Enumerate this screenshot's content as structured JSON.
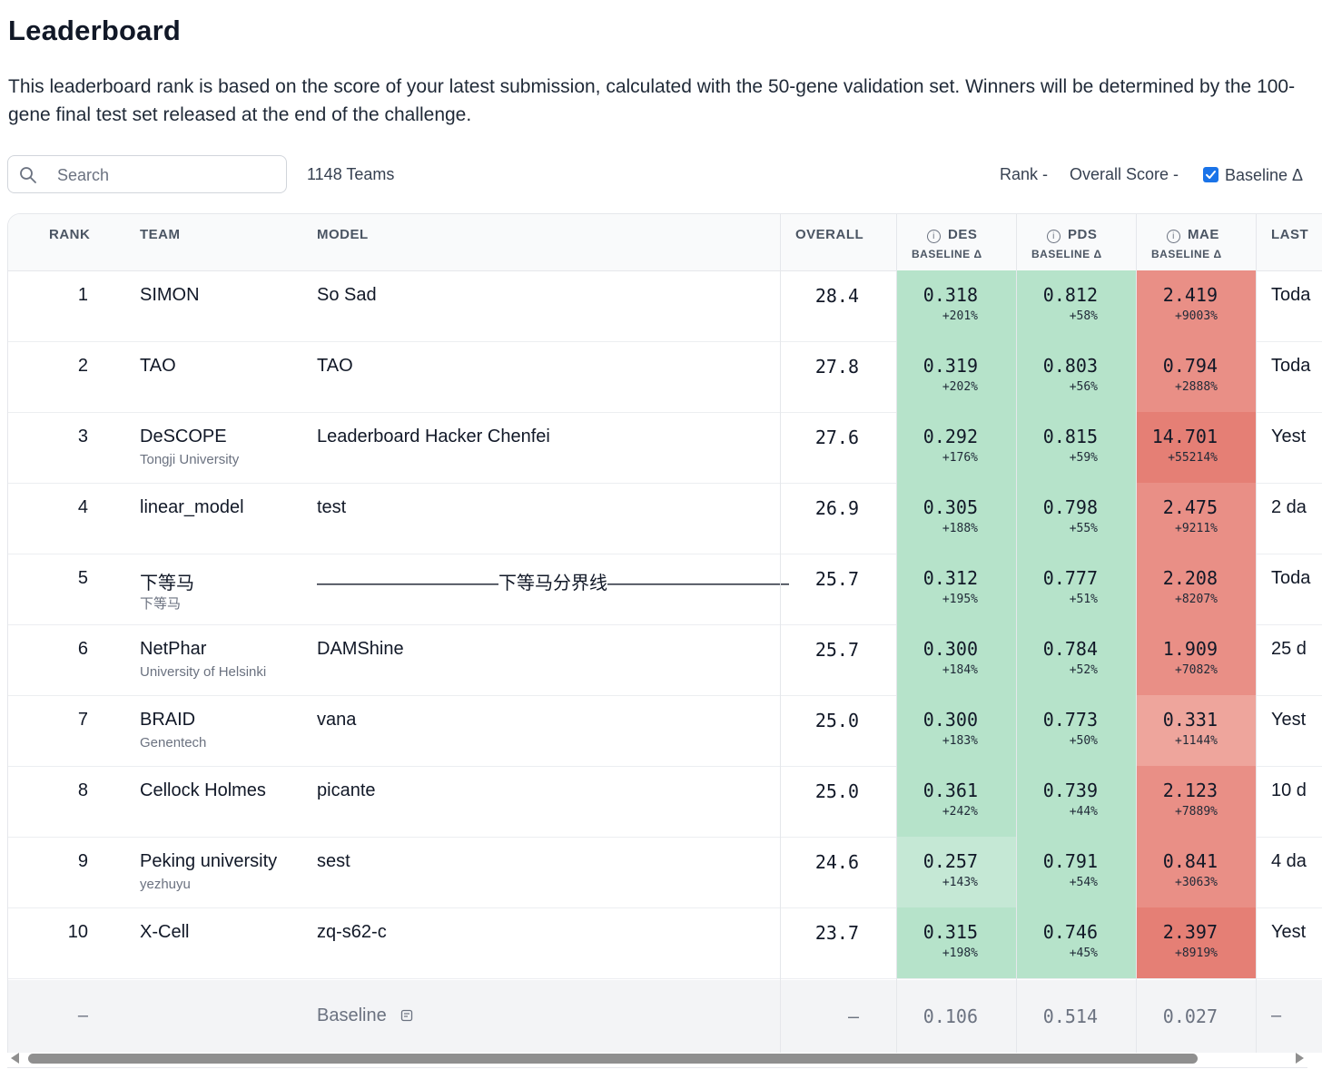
{
  "page": {
    "title": "Leaderboard",
    "description": "This leaderboard rank is based on the score of your latest submission, calculated with the 50-gene validation set. Winners will be determined by the 100-gene final test set released at the end of the challenge."
  },
  "controls": {
    "search_placeholder": "Search",
    "teams_count": "1148 Teams",
    "sort_rank": "Rank -",
    "sort_overall": "Overall Score -",
    "baseline_toggle": "Baseline Δ",
    "baseline_checked": true
  },
  "columns": {
    "rank": "RANK",
    "team": "TEAM",
    "model": "MODEL",
    "overall": "OVERALL",
    "des": "DES",
    "pds": "PDS",
    "mae": "MAE",
    "baseline_delta": "BASELINE Δ",
    "last": "LAST"
  },
  "colors": {
    "green": "#b6e3ca",
    "green_light": "#c5e8d5",
    "red": "#e98f86",
    "red_light": "#eea59c",
    "red_strong": "#e57f75"
  },
  "rows": [
    {
      "rank": "1",
      "team": "SIMON",
      "affiliation": "",
      "model": "So Sad",
      "overall": "28.4",
      "des": "0.318",
      "des_delta": "+201%",
      "pds": "0.812",
      "pds_delta": "+58%",
      "mae": "2.419",
      "mae_delta": "+9003%",
      "last": "Toda"
    },
    {
      "rank": "2",
      "team": "TAO",
      "affiliation": "",
      "model": "TAO",
      "overall": "27.8",
      "des": "0.319",
      "des_delta": "+202%",
      "pds": "0.803",
      "pds_delta": "+56%",
      "mae": "0.794",
      "mae_delta": "+2888%",
      "last": "Toda"
    },
    {
      "rank": "3",
      "team": "DeSCOPE",
      "affiliation": "Tongji University",
      "model": "Leaderboard Hacker Chenfei",
      "overall": "27.6",
      "des": "0.292",
      "des_delta": "+176%",
      "pds": "0.815",
      "pds_delta": "+59%",
      "mae": "14.701",
      "mae_delta": "+55214%",
      "last": "Yest"
    },
    {
      "rank": "4",
      "team": "linear_model",
      "affiliation": "",
      "model": "test",
      "overall": "26.9",
      "des": "0.305",
      "des_delta": "+188%",
      "pds": "0.798",
      "pds_delta": "+55%",
      "mae": "2.475",
      "mae_delta": "+9211%",
      "last": "2 da"
    },
    {
      "rank": "5",
      "team": "下等马",
      "affiliation": "下等马",
      "model": "——————————下等马分界线——————————",
      "overall": "25.7",
      "des": "0.312",
      "des_delta": "+195%",
      "pds": "0.777",
      "pds_delta": "+51%",
      "mae": "2.208",
      "mae_delta": "+8207%",
      "last": "Toda"
    },
    {
      "rank": "6",
      "team": "NetPhar",
      "affiliation": "University of Helsinki",
      "model": "DAMShine",
      "overall": "25.7",
      "des": "0.300",
      "des_delta": "+184%",
      "pds": "0.784",
      "pds_delta": "+52%",
      "mae": "1.909",
      "mae_delta": "+7082%",
      "last": "25 d"
    },
    {
      "rank": "7",
      "team": "BRAID",
      "affiliation": "Genentech",
      "model": "vana",
      "overall": "25.0",
      "des": "0.300",
      "des_delta": "+183%",
      "pds": "0.773",
      "pds_delta": "+50%",
      "mae": "0.331",
      "mae_delta": "+1144%",
      "last": "Yest"
    },
    {
      "rank": "8",
      "team": "Cellock Holmes",
      "affiliation": "",
      "model": "picante",
      "overall": "25.0",
      "des": "0.361",
      "des_delta": "+242%",
      "pds": "0.739",
      "pds_delta": "+44%",
      "mae": "2.123",
      "mae_delta": "+7889%",
      "last": "10 d"
    },
    {
      "rank": "9",
      "team": "Peking university",
      "affiliation": "yezhuyu",
      "model": "sest",
      "overall": "24.6",
      "des": "0.257",
      "des_delta": "+143%",
      "pds": "0.791",
      "pds_delta": "+54%",
      "mae": "0.841",
      "mae_delta": "+3063%",
      "last": "4 da"
    },
    {
      "rank": "10",
      "team": "X-Cell",
      "affiliation": "",
      "model": "zq-s62-c",
      "overall": "23.7",
      "des": "0.315",
      "des_delta": "+198%",
      "pds": "0.746",
      "pds_delta": "+45%",
      "mae": "2.397",
      "mae_delta": "+8919%",
      "last": "Yest"
    }
  ],
  "baseline": {
    "rank": "–",
    "model": "Baseline",
    "overall": "–",
    "des": "0.106",
    "pds": "0.514",
    "mae": "0.027",
    "last": "–"
  }
}
